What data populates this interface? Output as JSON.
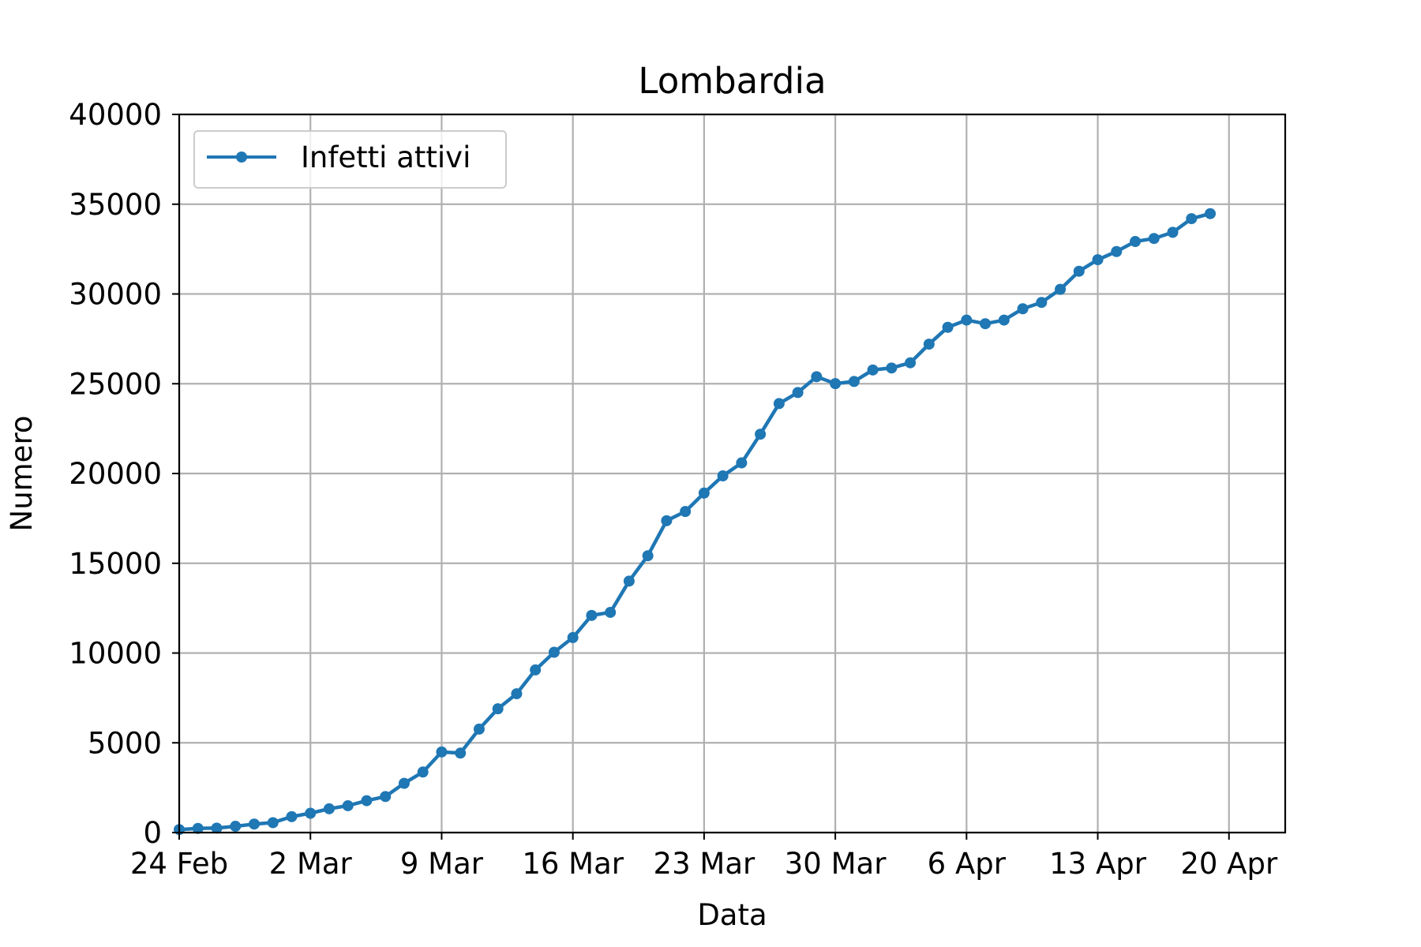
{
  "chart_data": {
    "type": "line",
    "title": "Lombardia",
    "xlabel": "Data",
    "ylabel": "Numero",
    "xlim": [
      "2020-02-24",
      "2020-04-23"
    ],
    "ylim": [
      0,
      40000
    ],
    "x_ticks": [
      {
        "date": "2020-02-24",
        "label": "24 Feb"
      },
      {
        "date": "2020-03-02",
        "label": "2 Mar"
      },
      {
        "date": "2020-03-09",
        "label": "9 Mar"
      },
      {
        "date": "2020-03-16",
        "label": "16 Mar"
      },
      {
        "date": "2020-03-23",
        "label": "23 Mar"
      },
      {
        "date": "2020-03-30",
        "label": "30 Mar"
      },
      {
        "date": "2020-04-06",
        "label": "6 Apr"
      },
      {
        "date": "2020-04-13",
        "label": "13 Apr"
      },
      {
        "date": "2020-04-20",
        "label": "20 Apr"
      }
    ],
    "y_ticks": [
      0,
      5000,
      10000,
      15000,
      20000,
      25000,
      30000,
      35000,
      40000
    ],
    "grid": true,
    "legend": "upper-left",
    "series": [
      {
        "name": "Infetti attivi",
        "color": "#1f77b4",
        "x": [
          "2020-02-24",
          "2020-02-25",
          "2020-02-26",
          "2020-02-27",
          "2020-02-28",
          "2020-02-29",
          "2020-03-01",
          "2020-03-02",
          "2020-03-03",
          "2020-03-04",
          "2020-03-05",
          "2020-03-06",
          "2020-03-07",
          "2020-03-08",
          "2020-03-09",
          "2020-03-10",
          "2020-03-11",
          "2020-03-12",
          "2020-03-13",
          "2020-03-14",
          "2020-03-15",
          "2020-03-16",
          "2020-03-17",
          "2020-03-18",
          "2020-03-19",
          "2020-03-20",
          "2020-03-21",
          "2020-03-22",
          "2020-03-23",
          "2020-03-24",
          "2020-03-25",
          "2020-03-26",
          "2020-03-27",
          "2020-03-28",
          "2020-03-29",
          "2020-03-30",
          "2020-03-31",
          "2020-04-01",
          "2020-04-02",
          "2020-04-03",
          "2020-04-04",
          "2020-04-05",
          "2020-04-06",
          "2020-04-07",
          "2020-04-08",
          "2020-04-09",
          "2020-04-10",
          "2020-04-11",
          "2020-04-12",
          "2020-04-13",
          "2020-04-14",
          "2020-04-15",
          "2020-04-16",
          "2020-04-17",
          "2020-04-18",
          "2020-04-19"
        ],
        "values": [
          166,
          231,
          249,
          349,
          474,
          552,
          887,
          1077,
          1326,
          1497,
          1777,
          2008,
          2742,
          3372,
          4490,
          4427,
          5763,
          6896,
          7732,
          9059,
          10043,
          10861,
          12095,
          12266,
          14007,
          15420,
          17370,
          17885,
          18910,
          19868,
          20591,
          22189,
          23895,
          24509,
          25392,
          25006,
          25124,
          25765,
          25876,
          26166,
          27206,
          28143,
          28545,
          28343,
          28545,
          29176,
          29530,
          30258,
          31265,
          31908,
          32363,
          32921,
          33090,
          33434,
          34195,
          34474
        ]
      }
    ]
  }
}
